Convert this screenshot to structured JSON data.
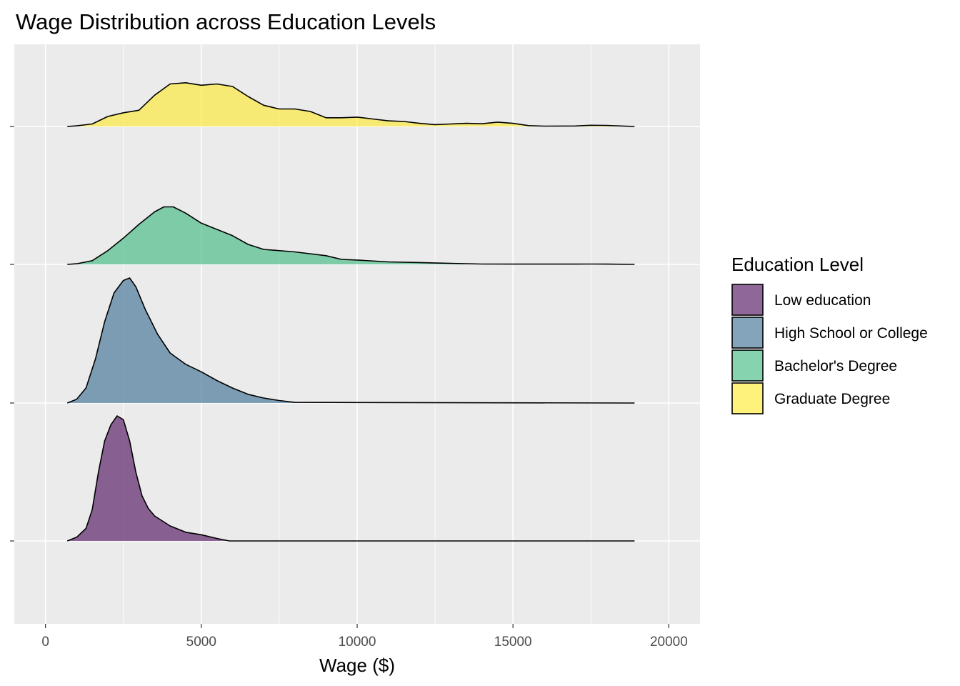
{
  "chart_data": {
    "type": "ridgeline",
    "title": "Wage Distribution across Education Levels",
    "xlabel": "Wage ($)",
    "ylabel": "",
    "xlim": [
      -1000,
      21000
    ],
    "x_ticks": [
      0,
      5000,
      10000,
      15000,
      20000
    ],
    "x_tick_labels": [
      "0",
      "5000",
      "10000",
      "15000",
      "20000"
    ],
    "grid": true,
    "legend": {
      "title": "Education Level",
      "placement": "right"
    },
    "series": [
      {
        "name": "Low education",
        "color": "#440154",
        "points": [
          [
            700,
            0.0
          ],
          [
            1000,
            0.03
          ],
          [
            1300,
            0.1
          ],
          [
            1500,
            0.25
          ],
          [
            1700,
            0.55
          ],
          [
            1900,
            0.8
          ],
          [
            2100,
            0.93
          ],
          [
            2300,
            1.0
          ],
          [
            2500,
            0.97
          ],
          [
            2700,
            0.8
          ],
          [
            2900,
            0.55
          ],
          [
            3100,
            0.36
          ],
          [
            3300,
            0.26
          ],
          [
            3500,
            0.2
          ],
          [
            4000,
            0.12
          ],
          [
            4500,
            0.07
          ],
          [
            5000,
            0.05
          ],
          [
            5500,
            0.02
          ],
          [
            5900,
            0.0
          ],
          [
            18900,
            0.0
          ]
        ]
      },
      {
        "name": "High School or College",
        "color": "#31688E",
        "points": [
          [
            700,
            0.0
          ],
          [
            1000,
            0.03
          ],
          [
            1300,
            0.12
          ],
          [
            1600,
            0.35
          ],
          [
            1900,
            0.65
          ],
          [
            2200,
            0.88
          ],
          [
            2500,
            0.98
          ],
          [
            2700,
            1.0
          ],
          [
            2900,
            0.93
          ],
          [
            3200,
            0.75
          ],
          [
            3600,
            0.55
          ],
          [
            4000,
            0.4
          ],
          [
            4500,
            0.31
          ],
          [
            5000,
            0.25
          ],
          [
            5500,
            0.18
          ],
          [
            6000,
            0.12
          ],
          [
            6500,
            0.07
          ],
          [
            7000,
            0.04
          ],
          [
            7500,
            0.02
          ],
          [
            8000,
            0.005
          ],
          [
            18900,
            0.0
          ]
        ]
      },
      {
        "name": "Bachelor's Degree",
        "color": "#35B779",
        "points": [
          [
            700,
            0.0
          ],
          [
            1000,
            0.005
          ],
          [
            1500,
            0.03
          ],
          [
            2000,
            0.11
          ],
          [
            2500,
            0.21
          ],
          [
            3000,
            0.32
          ],
          [
            3500,
            0.42
          ],
          [
            3800,
            0.46
          ],
          [
            4100,
            0.46
          ],
          [
            4500,
            0.41
          ],
          [
            5000,
            0.33
          ],
          [
            5500,
            0.28
          ],
          [
            6000,
            0.23
          ],
          [
            6500,
            0.16
          ],
          [
            7000,
            0.12
          ],
          [
            8000,
            0.1
          ],
          [
            9000,
            0.07
          ],
          [
            9500,
            0.04
          ],
          [
            10000,
            0.035
          ],
          [
            11000,
            0.02
          ],
          [
            12000,
            0.015
          ],
          [
            13000,
            0.008
          ],
          [
            14000,
            0.003
          ],
          [
            15000,
            0.002
          ],
          [
            16000,
            0.002
          ],
          [
            17000,
            0.002
          ],
          [
            17500,
            0.003
          ],
          [
            18000,
            0.002
          ],
          [
            18900,
            0.0
          ]
        ]
      },
      {
        "name": "Graduate Degree",
        "color": "#FDE725",
        "points": [
          [
            700,
            0.0
          ],
          [
            1000,
            0.005
          ],
          [
            1500,
            0.02
          ],
          [
            2000,
            0.08
          ],
          [
            2500,
            0.11
          ],
          [
            3000,
            0.13
          ],
          [
            3500,
            0.25
          ],
          [
            4000,
            0.34
          ],
          [
            4500,
            0.35
          ],
          [
            5000,
            0.33
          ],
          [
            5500,
            0.34
          ],
          [
            6000,
            0.32
          ],
          [
            6500,
            0.24
          ],
          [
            7000,
            0.17
          ],
          [
            7500,
            0.14
          ],
          [
            8000,
            0.14
          ],
          [
            8500,
            0.12
          ],
          [
            9000,
            0.07
          ],
          [
            9500,
            0.07
          ],
          [
            10000,
            0.075
          ],
          [
            10500,
            0.06
          ],
          [
            11000,
            0.045
          ],
          [
            11500,
            0.04
          ],
          [
            12000,
            0.025
          ],
          [
            12500,
            0.015
          ],
          [
            13000,
            0.02
          ],
          [
            13500,
            0.025
          ],
          [
            14000,
            0.022
          ],
          [
            14500,
            0.035
          ],
          [
            15000,
            0.025
          ],
          [
            15500,
            0.007
          ],
          [
            16000,
            0.003
          ],
          [
            17000,
            0.004
          ],
          [
            17500,
            0.01
          ],
          [
            18000,
            0.008
          ],
          [
            18900,
            0.0
          ]
        ]
      }
    ]
  }
}
